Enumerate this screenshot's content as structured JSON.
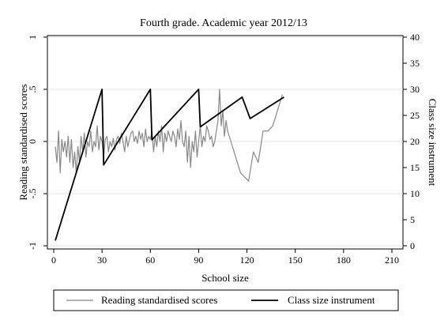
{
  "chart_data": {
    "type": "line",
    "title": "Fourth grade. Academic year 2012/13",
    "xlabel": "School size",
    "ylabel_left": "Reading standardised scores",
    "ylabel_right": "Class size instrument",
    "xlim": [
      0,
      210
    ],
    "xticks": [
      0,
      30,
      60,
      90,
      120,
      150,
      180,
      210
    ],
    "ylim_left": [
      -1,
      1
    ],
    "yticks_left": [
      -1,
      -0.5,
      0,
      0.5,
      1
    ],
    "ytick_labels_left": [
      "-1",
      "-.5",
      "0",
      ".5",
      "1"
    ],
    "ylim_right": [
      0,
      40
    ],
    "yticks_right": [
      0,
      5,
      10,
      15,
      20,
      25,
      30,
      35,
      40
    ],
    "grid": "horizontal",
    "legend": "bottom",
    "series": [
      {
        "name": "Reading standardised scores",
        "axis": "left",
        "color": "#888888",
        "x": [
          1,
          2,
          3,
          4,
          5,
          6,
          7,
          8,
          9,
          10,
          11,
          12,
          13,
          14,
          15,
          16,
          17,
          18,
          19,
          20,
          21,
          22,
          23,
          24,
          25,
          26,
          27,
          28,
          29,
          30,
          31,
          32,
          33,
          34,
          35,
          36,
          37,
          38,
          39,
          40,
          41,
          42,
          43,
          44,
          45,
          46,
          47,
          48,
          49,
          50,
          51,
          52,
          53,
          54,
          55,
          56,
          57,
          58,
          59,
          60,
          61,
          62,
          63,
          64,
          65,
          66,
          67,
          68,
          69,
          70,
          71,
          72,
          73,
          74,
          75,
          76,
          77,
          78,
          79,
          80,
          81,
          82,
          83,
          84,
          85,
          86,
          87,
          88,
          89,
          90,
          91,
          92,
          93,
          94,
          95,
          96,
          97,
          98,
          99,
          100,
          101,
          102,
          103,
          104,
          105,
          106,
          107,
          108,
          110,
          113,
          116,
          121,
          124,
          127,
          130,
          133,
          136,
          139,
          142
        ],
        "y": [
          -0.05,
          -0.2,
          0.1,
          -0.3,
          0.02,
          -0.1,
          0.0,
          -0.15,
          0.05,
          -0.2,
          0.02,
          -0.25,
          -0.1,
          -0.3,
          -0.05,
          -0.2,
          0.05,
          -0.1,
          0.08,
          -0.15,
          0.0,
          -0.05,
          0.1,
          -0.1,
          0.0,
          -0.05,
          0.15,
          -0.08,
          0.05,
          0.0,
          -0.15,
          0.02,
          0.05,
          -0.1,
          0.0,
          -0.05,
          0.03,
          -0.08,
          0.02,
          0.05,
          -0.02,
          0.08,
          0.0,
          -0.1,
          0.05,
          -0.05,
          0.02,
          0.08,
          0.1,
          0.0,
          0.05,
          -0.02,
          0.1,
          0.02,
          0.08,
          -0.05,
          0.12,
          0.0,
          0.05,
          0.02,
          0.1,
          -0.1,
          0.05,
          -0.05,
          0.1,
          0.0,
          0.15,
          -0.1,
          0.08,
          0.0,
          0.1,
          0.05,
          0.0,
          0.1,
          0.05,
          -0.05,
          0.12,
          0.02,
          0.2,
          0.0,
          -0.05,
          0.1,
          -0.2,
          0.05,
          -0.25,
          0.0,
          -0.1,
          0.1,
          -0.15,
          0.0,
          0.15,
          -0.05,
          0.05,
          0.0,
          0.15,
          0.1,
          0.02,
          0.05,
          -0.05,
          0.0,
          0.1,
          0.2,
          0.5,
          0.15,
          0.3,
          0.05,
          0.2,
          0.1,
          0.0,
          -0.15,
          -0.3,
          -0.38,
          -0.1,
          -0.2,
          0.1,
          0.1,
          0.15,
          0.3,
          0.45
        ]
      },
      {
        "name": "Class size instrument",
        "axis": "right",
        "color": "#000000",
        "x": [
          1,
          30,
          31,
          60,
          61,
          90,
          91,
          117,
          122,
          143
        ],
        "y": [
          1,
          30,
          15.5,
          30,
          20.3,
          30,
          22.8,
          28.5,
          24.4,
          28.5
        ]
      }
    ]
  }
}
